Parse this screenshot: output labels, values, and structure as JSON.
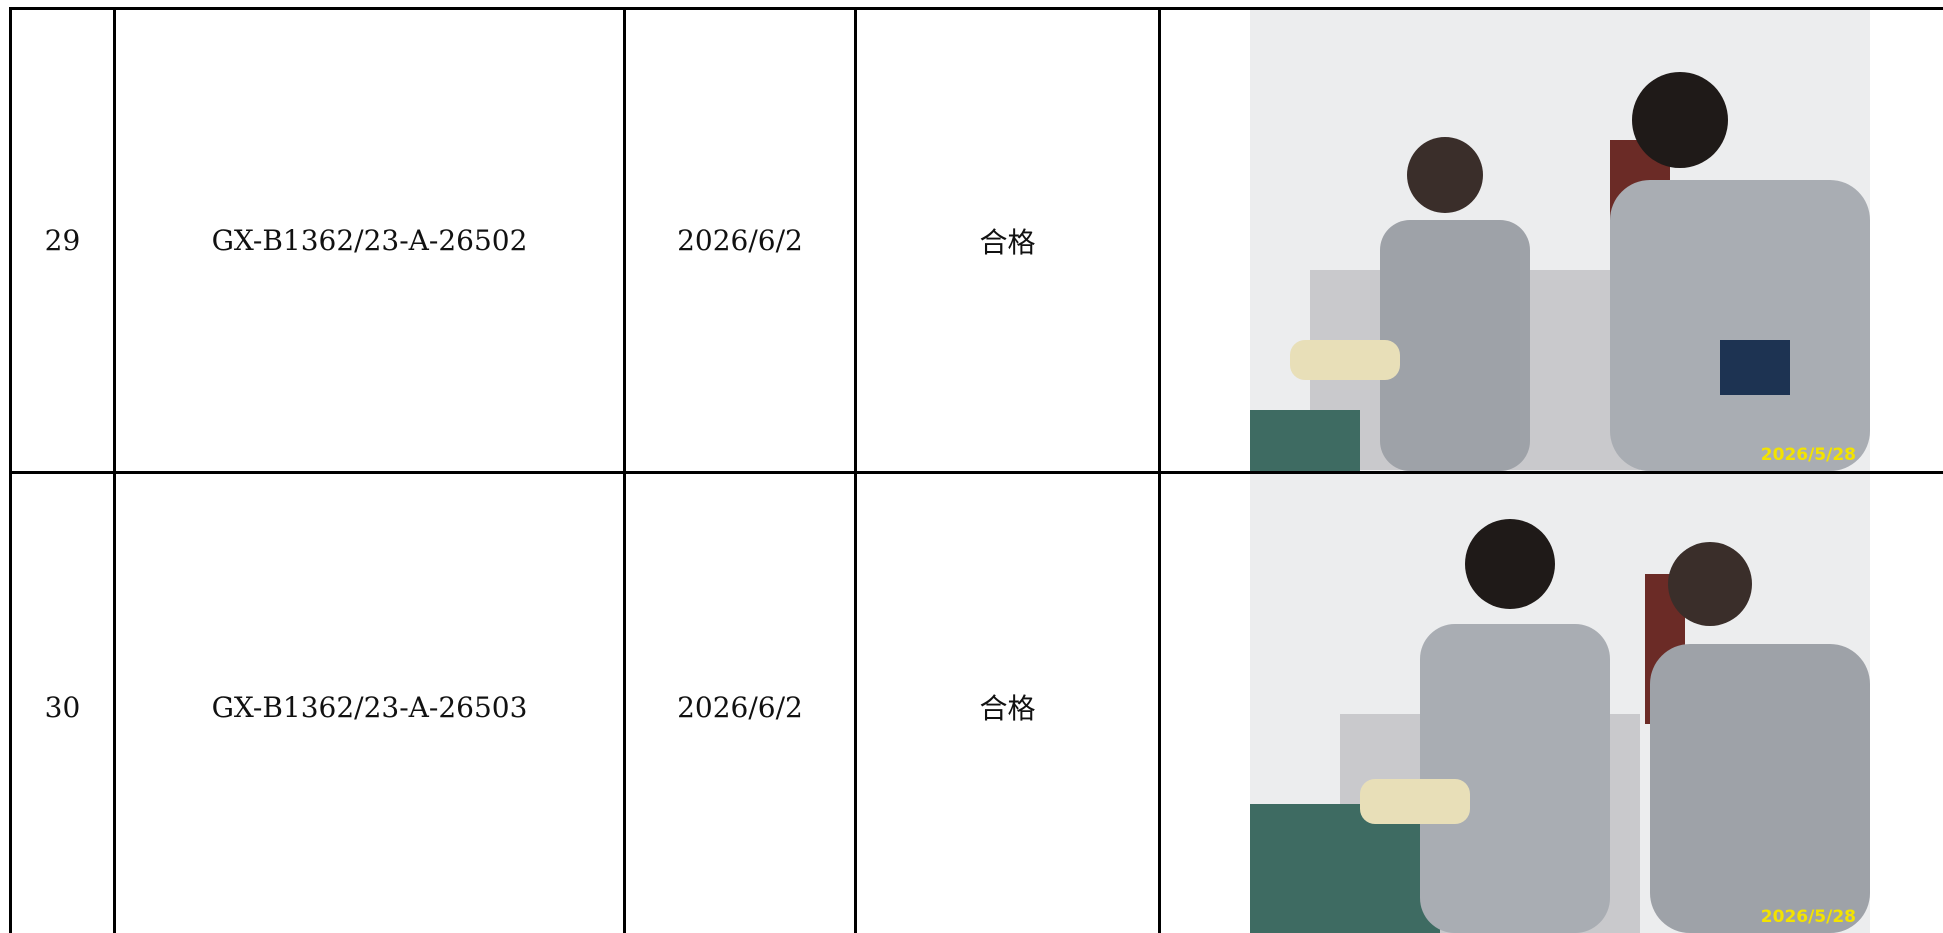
{
  "table": {
    "rows": [
      {
        "no": "29",
        "code": "GX-B1362/23-A-26502",
        "date": "2026/6/2",
        "result": "合格",
        "photo_stamp": "2026/5/28"
      },
      {
        "no": "30",
        "code": "GX-B1362/23-A-26503",
        "date": "2026/6/2",
        "result": "合格",
        "photo_stamp": "2026/5/28"
      }
    ]
  }
}
